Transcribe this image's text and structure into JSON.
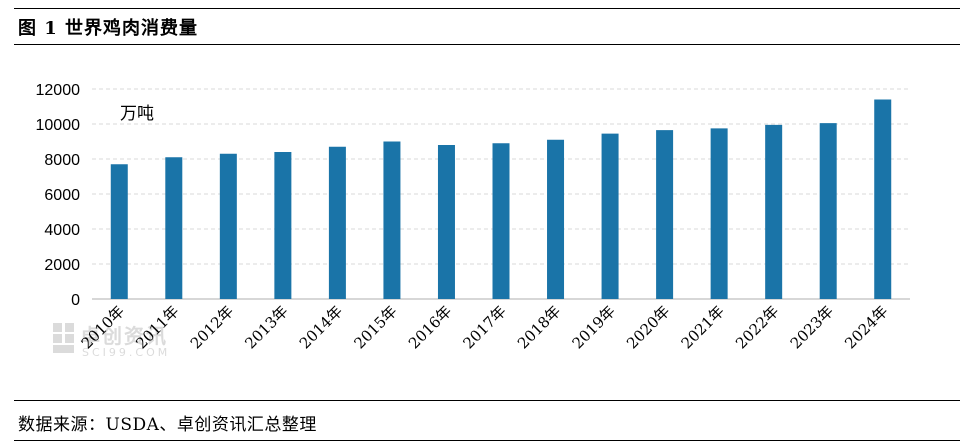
{
  "header": {
    "title": "图 1 世界鸡肉消费量"
  },
  "footer": {
    "source": "数据来源：USDA、卓创资讯汇总整理"
  },
  "watermark": {
    "text": "卓创资讯",
    "sub": "SCI99.COM"
  },
  "colors": {
    "bar": "#1a74a8",
    "grid": "#d9d9d9",
    "axis": "#bfbfbf",
    "rule": "#000000"
  },
  "chart_data": {
    "type": "bar",
    "unit_label": "万吨",
    "categories": [
      "2010年",
      "2011年",
      "2012年",
      "2013年",
      "2014年",
      "2015年",
      "2016年",
      "2017年",
      "2018年",
      "2019年",
      "2020年",
      "2021年",
      "2022年",
      "2023年",
      "2024年"
    ],
    "values": [
      7700,
      8100,
      8300,
      8400,
      8700,
      9000,
      8800,
      8900,
      9100,
      9450,
      9650,
      9750,
      9950,
      10050,
      11400
    ],
    "ylim": [
      0,
      12000
    ],
    "yticks": [
      0,
      2000,
      4000,
      6000,
      8000,
      10000,
      12000
    ],
    "grid": true,
    "legend": "none"
  }
}
